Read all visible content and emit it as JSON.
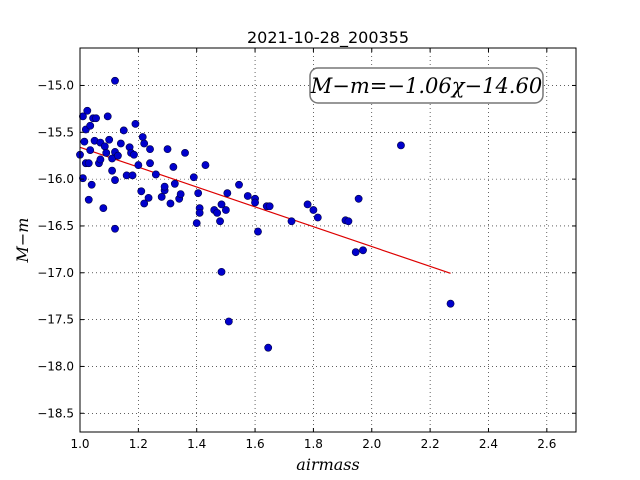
{
  "chart_data": {
    "type": "scatter",
    "title": "2021-10-28_200355",
    "xlabel": "airmass",
    "ylabel": "M−m",
    "xlim": [
      1.0,
      2.7
    ],
    "ylim": [
      -18.7,
      -14.6
    ],
    "y_inverted": true,
    "grid": true,
    "xticks": [
      "1.0",
      "1.2",
      "1.4",
      "1.6",
      "1.8",
      "2.0",
      "2.2",
      "2.4",
      "2.6"
    ],
    "yticks": [
      "−15.0",
      "−15.5",
      "−16.0",
      "−16.5",
      "−17.0",
      "−17.5",
      "−18.0",
      "−18.5"
    ],
    "xtick_values": [
      1.0,
      1.2,
      1.4,
      1.6,
      1.8,
      2.0,
      2.2,
      2.4,
      2.6
    ],
    "ytick_values": [
      -15.0,
      -15.5,
      -16.0,
      -16.5,
      -17.0,
      -17.5,
      -18.0,
      -18.5
    ],
    "annotation": "M−m=−1.06χ−14.60",
    "fit": {
      "slope": -1.06,
      "intercept": -14.6,
      "x_range": [
        1.0,
        2.27
      ],
      "color": "#dd0000"
    },
    "marker_color": "#0000cc",
    "points": [
      [
        1.0,
        -15.74
      ],
      [
        1.01,
        -15.33
      ],
      [
        1.01,
        -15.99
      ],
      [
        1.015,
        -15.6
      ],
      [
        1.02,
        -15.83
      ],
      [
        1.02,
        -15.47
      ],
      [
        1.025,
        -15.27
      ],
      [
        1.03,
        -15.83
      ],
      [
        1.03,
        -16.22
      ],
      [
        1.035,
        -15.43
      ],
      [
        1.035,
        -15.69
      ],
      [
        1.04,
        -16.06
      ],
      [
        1.045,
        -15.35
      ],
      [
        1.05,
        -15.59
      ],
      [
        1.055,
        -15.35
      ],
      [
        1.065,
        -15.83
      ],
      [
        1.07,
        -15.79
      ],
      [
        1.07,
        -15.61
      ],
      [
        1.08,
        -16.31
      ],
      [
        1.085,
        -15.65
      ],
      [
        1.09,
        -15.72
      ],
      [
        1.095,
        -15.33
      ],
      [
        1.1,
        -15.58
      ],
      [
        1.11,
        -15.78
      ],
      [
        1.11,
        -15.91
      ],
      [
        1.12,
        -15.71
      ],
      [
        1.12,
        -16.01
      ],
      [
        1.12,
        -16.53
      ],
      [
        1.12,
        -14.95
      ],
      [
        1.13,
        -15.75
      ],
      [
        1.14,
        -15.62
      ],
      [
        1.15,
        -15.48
      ],
      [
        1.16,
        -15.96
      ],
      [
        1.17,
        -15.66
      ],
      [
        1.175,
        -15.72
      ],
      [
        1.18,
        -15.96
      ],
      [
        1.185,
        -15.74
      ],
      [
        1.19,
        -15.41
      ],
      [
        1.2,
        -15.85
      ],
      [
        1.21,
        -16.13
      ],
      [
        1.215,
        -15.55
      ],
      [
        1.22,
        -15.62
      ],
      [
        1.22,
        -16.26
      ],
      [
        1.235,
        -16.2
      ],
      [
        1.24,
        -15.68
      ],
      [
        1.24,
        -15.83
      ],
      [
        1.26,
        -15.95
      ],
      [
        1.28,
        -16.19
      ],
      [
        1.29,
        -16.12
      ],
      [
        1.29,
        -16.08
      ],
      [
        1.3,
        -15.68
      ],
      [
        1.31,
        -16.26
      ],
      [
        1.32,
        -15.87
      ],
      [
        1.325,
        -16.05
      ],
      [
        1.34,
        -16.21
      ],
      [
        1.345,
        -16.16
      ],
      [
        1.36,
        -15.72
      ],
      [
        1.39,
        -15.98
      ],
      [
        1.4,
        -16.47
      ],
      [
        1.405,
        -16.15
      ],
      [
        1.41,
        -16.31
      ],
      [
        1.41,
        -16.36
      ],
      [
        1.43,
        -15.85
      ],
      [
        1.46,
        -16.33
      ],
      [
        1.47,
        -16.36
      ],
      [
        1.48,
        -16.45
      ],
      [
        1.485,
        -16.27
      ],
      [
        1.485,
        -16.99
      ],
      [
        1.5,
        -16.33
      ],
      [
        1.505,
        -16.15
      ],
      [
        1.51,
        -17.52
      ],
      [
        1.545,
        -16.06
      ],
      [
        1.575,
        -16.18
      ],
      [
        1.6,
        -16.21
      ],
      [
        1.6,
        -16.25
      ],
      [
        1.61,
        -16.56
      ],
      [
        1.64,
        -16.29
      ],
      [
        1.645,
        -17.8
      ],
      [
        1.65,
        -16.29
      ],
      [
        1.725,
        -16.45
      ],
      [
        1.78,
        -16.27
      ],
      [
        1.8,
        -16.33
      ],
      [
        1.815,
        -16.41
      ],
      [
        1.91,
        -16.44
      ],
      [
        1.92,
        -16.45
      ],
      [
        1.945,
        -16.78
      ],
      [
        1.955,
        -16.21
      ],
      [
        1.97,
        -16.76
      ],
      [
        2.1,
        -15.64
      ],
      [
        2.27,
        -17.33
      ]
    ]
  }
}
